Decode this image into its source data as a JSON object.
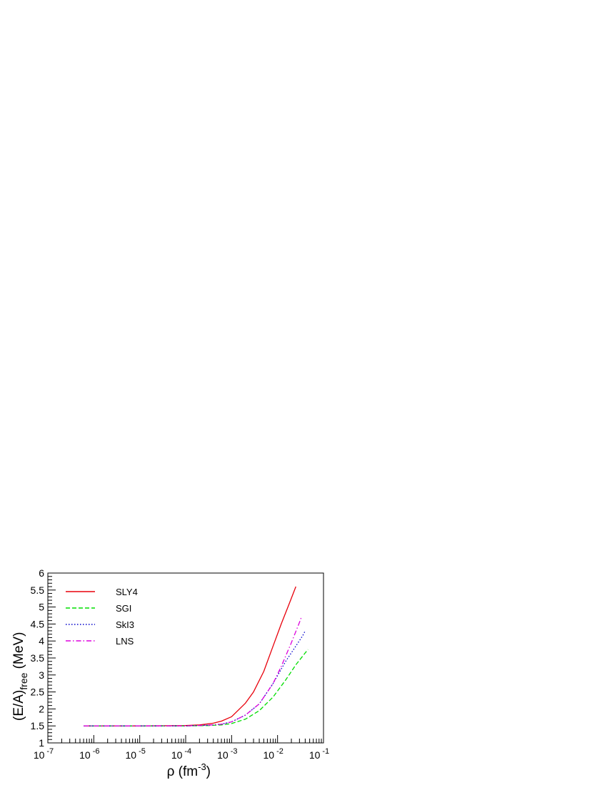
{
  "chart_data": {
    "type": "line",
    "xscale": "log",
    "xlim": [
      1e-07,
      0.1
    ],
    "ylim": [
      1,
      6
    ],
    "xlabel": {
      "base": "ρ (fm",
      "sup": "-3",
      "tail": ")"
    },
    "ylabel": {
      "base": "(E/A)",
      "sub": "free",
      "tail": " (MeV)"
    },
    "x_ticks": [
      {
        "value": 1e-07,
        "base": "10",
        "exp": "-7"
      },
      {
        "value": 1e-06,
        "base": "10",
        "exp": "-6"
      },
      {
        "value": 1e-05,
        "base": "10",
        "exp": "-5"
      },
      {
        "value": 0.0001,
        "base": "10",
        "exp": "-4"
      },
      {
        "value": 0.001,
        "base": "10",
        "exp": "-3"
      },
      {
        "value": 0.01,
        "base": "10",
        "exp": "-2"
      },
      {
        "value": 0.1,
        "base": "10",
        "exp": "-1"
      }
    ],
    "y_ticks": [
      "1",
      "1.5",
      "2",
      "2.5",
      "3",
      "3.5",
      "4",
      "4.5",
      "5",
      "5.5",
      "6"
    ],
    "grid": false,
    "legend_position": "top-left",
    "series": [
      {
        "name": "SLY4",
        "color": "#e8000b",
        "dash": "solid",
        "points": [
          [
            6e-07,
            1.5
          ],
          [
            1e-05,
            1.5
          ],
          [
            0.0001,
            1.51
          ],
          [
            0.0002,
            1.53
          ],
          [
            0.0004,
            1.58
          ],
          [
            0.0006,
            1.64
          ],
          [
            0.001,
            1.77
          ],
          [
            0.002,
            2.17
          ],
          [
            0.003,
            2.5
          ],
          [
            0.005,
            3.1
          ],
          [
            0.008,
            3.85
          ],
          [
            0.012,
            4.5
          ],
          [
            0.018,
            5.1
          ],
          [
            0.025,
            5.6
          ]
        ]
      },
      {
        "name": "SGI",
        "color": "#00dd00",
        "dash": "dashed",
        "points": [
          [
            6e-07,
            1.5
          ],
          [
            1e-05,
            1.5
          ],
          [
            0.0001,
            1.5
          ],
          [
            0.0003,
            1.51
          ],
          [
            0.0006,
            1.53
          ],
          [
            0.001,
            1.57
          ],
          [
            0.002,
            1.7
          ],
          [
            0.004,
            1.95
          ],
          [
            0.008,
            2.35
          ],
          [
            0.015,
            2.85
          ],
          [
            0.025,
            3.3
          ],
          [
            0.04,
            3.65
          ],
          [
            0.046,
            3.75
          ]
        ]
      },
      {
        "name": "SkI3",
        "color": "#0000cc",
        "dash": "dotted",
        "points": [
          [
            6e-07,
            1.5
          ],
          [
            1e-05,
            1.5
          ],
          [
            0.0001,
            1.5
          ],
          [
            0.0003,
            1.52
          ],
          [
            0.0006,
            1.55
          ],
          [
            0.001,
            1.62
          ],
          [
            0.002,
            1.82
          ],
          [
            0.004,
            2.15
          ],
          [
            0.008,
            2.75
          ],
          [
            0.015,
            3.4
          ],
          [
            0.025,
            3.85
          ],
          [
            0.035,
            4.15
          ],
          [
            0.04,
            4.3
          ]
        ]
      },
      {
        "name": "LNS",
        "color": "#dd00dd",
        "dash": "dashdot",
        "points": [
          [
            6e-07,
            1.5
          ],
          [
            1e-05,
            1.5
          ],
          [
            0.0001,
            1.5
          ],
          [
            0.0003,
            1.52
          ],
          [
            0.0006,
            1.55
          ],
          [
            0.001,
            1.62
          ],
          [
            0.002,
            1.82
          ],
          [
            0.004,
            2.15
          ],
          [
            0.008,
            2.75
          ],
          [
            0.012,
            3.25
          ],
          [
            0.02,
            3.95
          ],
          [
            0.03,
            4.55
          ],
          [
            0.033,
            4.7
          ]
        ]
      }
    ]
  }
}
